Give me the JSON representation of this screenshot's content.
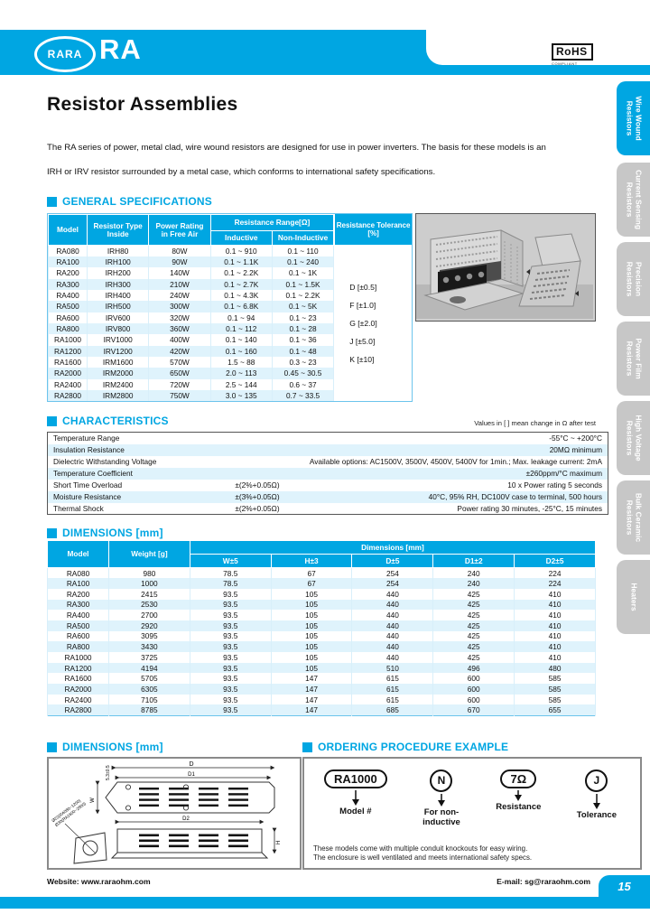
{
  "colors": {
    "accent": "#00A6E2",
    "row_stripe": "#DFF3FC",
    "tab_gray": "#C7C7C7"
  },
  "header": {
    "logo": "RARA",
    "series": "RA",
    "rohs_title": "RoHS",
    "rohs_sub": "COMPLIANT"
  },
  "side_tabs": [
    {
      "label": "Wire Wound\nResistors",
      "active": true
    },
    {
      "label": "Current Sensing\nResistors",
      "active": false
    },
    {
      "label": "Precision\nResistors",
      "active": false
    },
    {
      "label": "Power Film\nResistors",
      "active": false
    },
    {
      "label": "High Voltage\nResistors",
      "active": false
    },
    {
      "label": "Bulk Ceramic\nResistors",
      "active": false
    },
    {
      "label": "Heaters",
      "active": false
    }
  ],
  "page_title": "Resistor Assemblies",
  "intro_line1": "The RA series of power, metal clad, wire wound resistors are designed for use in power inverters. The basis for these models is an",
  "intro_line2": "IRH or IRV resistor surrounded by a metal case, which conforms to international safety specifications.",
  "section_titles": {
    "general": "GENERAL SPECIFICATIONS",
    "characteristics": "CHARACTERISTICS",
    "dimensions": "DIMENSIONS [mm]",
    "dimensions_drawing": "DIMENSIONS [mm]",
    "ordering": "ORDERING PROCEDURE EXAMPLE"
  },
  "spec_table": {
    "headers": {
      "model": "Model",
      "type": "Resistor Type Inside",
      "power": "Power Rating\nin Free Air",
      "range": "Resistance Range[Ω]",
      "inductive": "Inductive",
      "non_inductive": "Non-Inductive",
      "tolerance": "Resistance Tolerance\n[%]"
    },
    "rows": [
      [
        "RA080",
        "IRH80",
        "80W",
        "0.1 ~ 910",
        "0.1 ~ 110"
      ],
      [
        "RA100",
        "IRH100",
        "90W",
        "0.1 ~ 1.1K",
        "0.1 ~ 240"
      ],
      [
        "RA200",
        "IRH200",
        "140W",
        "0.1 ~ 2.2K",
        "0.1 ~ 1K"
      ],
      [
        "RA300",
        "IRH300",
        "210W",
        "0.1 ~ 2.7K",
        "0.1 ~ 1.5K"
      ],
      [
        "RA400",
        "IRH400",
        "240W",
        "0.1 ~ 4.3K",
        "0.1 ~ 2.2K"
      ],
      [
        "RA500",
        "IRH500",
        "300W",
        "0.1 ~ 6.8K",
        "0.1 ~ 5K"
      ],
      [
        "RA600",
        "IRV600",
        "320W",
        "0.1 ~ 94",
        "0.1 ~ 23"
      ],
      [
        "RA800",
        "IRV800",
        "360W",
        "0.1 ~ 112",
        "0.1 ~ 28"
      ],
      [
        "RA1000",
        "IRV1000",
        "400W",
        "0.1 ~ 140",
        "0.1 ~ 36"
      ],
      [
        "RA1200",
        "IRV1200",
        "420W",
        "0.1 ~ 160",
        "0.1 ~ 48"
      ],
      [
        "RA1600",
        "IRM1600",
        "570W",
        "1.5 ~ 88",
        "0.3 ~ 23"
      ],
      [
        "RA2000",
        "IRM2000",
        "650W",
        "2.0 ~ 113",
        "0.45 ~ 30.5"
      ],
      [
        "RA2400",
        "IRM2400",
        "720W",
        "2.5 ~ 144",
        "0.6 ~ 37"
      ],
      [
        "RA2800",
        "IRM2800",
        "750W",
        "3.0 ~ 135",
        "0.7 ~ 33.5"
      ]
    ],
    "tolerances": [
      "D [±0.5]",
      "F [±1.0]",
      "G [±2.0]",
      "J [±5.0]",
      "K [±10]"
    ]
  },
  "characteristics": {
    "note": "Values in [ ] mean change in Ω after test",
    "rows": [
      [
        "Temperature Range",
        "",
        "-55°C ~ +200°C"
      ],
      [
        "Insulation Resistance",
        "",
        "20MΩ minimum"
      ],
      [
        "Dielectric Withstanding Voltage",
        "",
        "Available options: AC1500V, 3500V, 4500V, 5400V for 1min.; Max. leakage current: 2mA"
      ],
      [
        "Temperature Coefficient",
        "",
        "±260ppm/°C maximum"
      ],
      [
        "Short Time Overload",
        "±(2%+0.05Ω)",
        "10 x Power rating 5 seconds"
      ],
      [
        "Moisture Resistance",
        "±(3%+0.05Ω)",
        "40°C, 95% RH, DC100V case to terminal, 500 hours"
      ],
      [
        "Thermal Shock",
        "±(2%+0.05Ω)",
        "Power rating 30 minutes, -25°C, 15 minutes"
      ]
    ]
  },
  "dim_table": {
    "headers": {
      "model": "Model",
      "weight": "Weight [g]",
      "group": "Dimensions [mm]",
      "w": "W±5",
      "h": "H±3",
      "d": "D±5",
      "d1": "D1±2",
      "d2": "D2±5"
    },
    "rows": [
      [
        "RA080",
        "980",
        "78.5",
        "67",
        "254",
        "240",
        "224"
      ],
      [
        "RA100",
        "1000",
        "78.5",
        "67",
        "254",
        "240",
        "224"
      ],
      [
        "RA200",
        "2415",
        "93.5",
        "105",
        "440",
        "425",
        "410"
      ],
      [
        "RA300",
        "2530",
        "93.5",
        "105",
        "440",
        "425",
        "410"
      ],
      [
        "RA400",
        "2700",
        "93.5",
        "105",
        "440",
        "425",
        "410"
      ],
      [
        "RA500",
        "2920",
        "93.5",
        "105",
        "440",
        "425",
        "410"
      ],
      [
        "RA600",
        "3095",
        "93.5",
        "105",
        "440",
        "425",
        "410"
      ],
      [
        "RA800",
        "3430",
        "93.5",
        "105",
        "440",
        "425",
        "410"
      ],
      [
        "RA1000",
        "3725",
        "93.5",
        "105",
        "440",
        "425",
        "410"
      ],
      [
        "RA1200",
        "4194",
        "93.5",
        "105",
        "510",
        "496",
        "480"
      ],
      [
        "RA1600",
        "5705",
        "93.5",
        "147",
        "615",
        "600",
        "585"
      ],
      [
        "RA2000",
        "6305",
        "93.5",
        "147",
        "615",
        "600",
        "585"
      ],
      [
        "RA2400",
        "7105",
        "93.5",
        "147",
        "615",
        "600",
        "585"
      ],
      [
        "RA2800",
        "8785",
        "93.5",
        "147",
        "685",
        "670",
        "655"
      ]
    ]
  },
  "diagram_labels": {
    "d": "D",
    "d1": "D1",
    "d2": "D2",
    "w": "W",
    "h": "H",
    "offset": "5.3±0.5",
    "knockout_small": "Ø22(RA080~1200)",
    "knockout_large": "Ø30(RA1600~2800)"
  },
  "ordering": {
    "items": [
      {
        "symbol": "RA1000",
        "label": "Model #"
      },
      {
        "symbol": "N",
        "label": "For non-\ninductive"
      },
      {
        "symbol": "7Ω",
        "label": "Resistance"
      },
      {
        "symbol": "J",
        "label": "Tolerance"
      }
    ],
    "note_line1": "These models come with multiple conduit knockouts for easy wiring.",
    "note_line2": "The enclosure is well ventilated and meets international safety specs."
  },
  "footer": {
    "website": "Website: www.raraohm.com",
    "email": "E-mail: sg@raraohm.com",
    "page": "15"
  }
}
